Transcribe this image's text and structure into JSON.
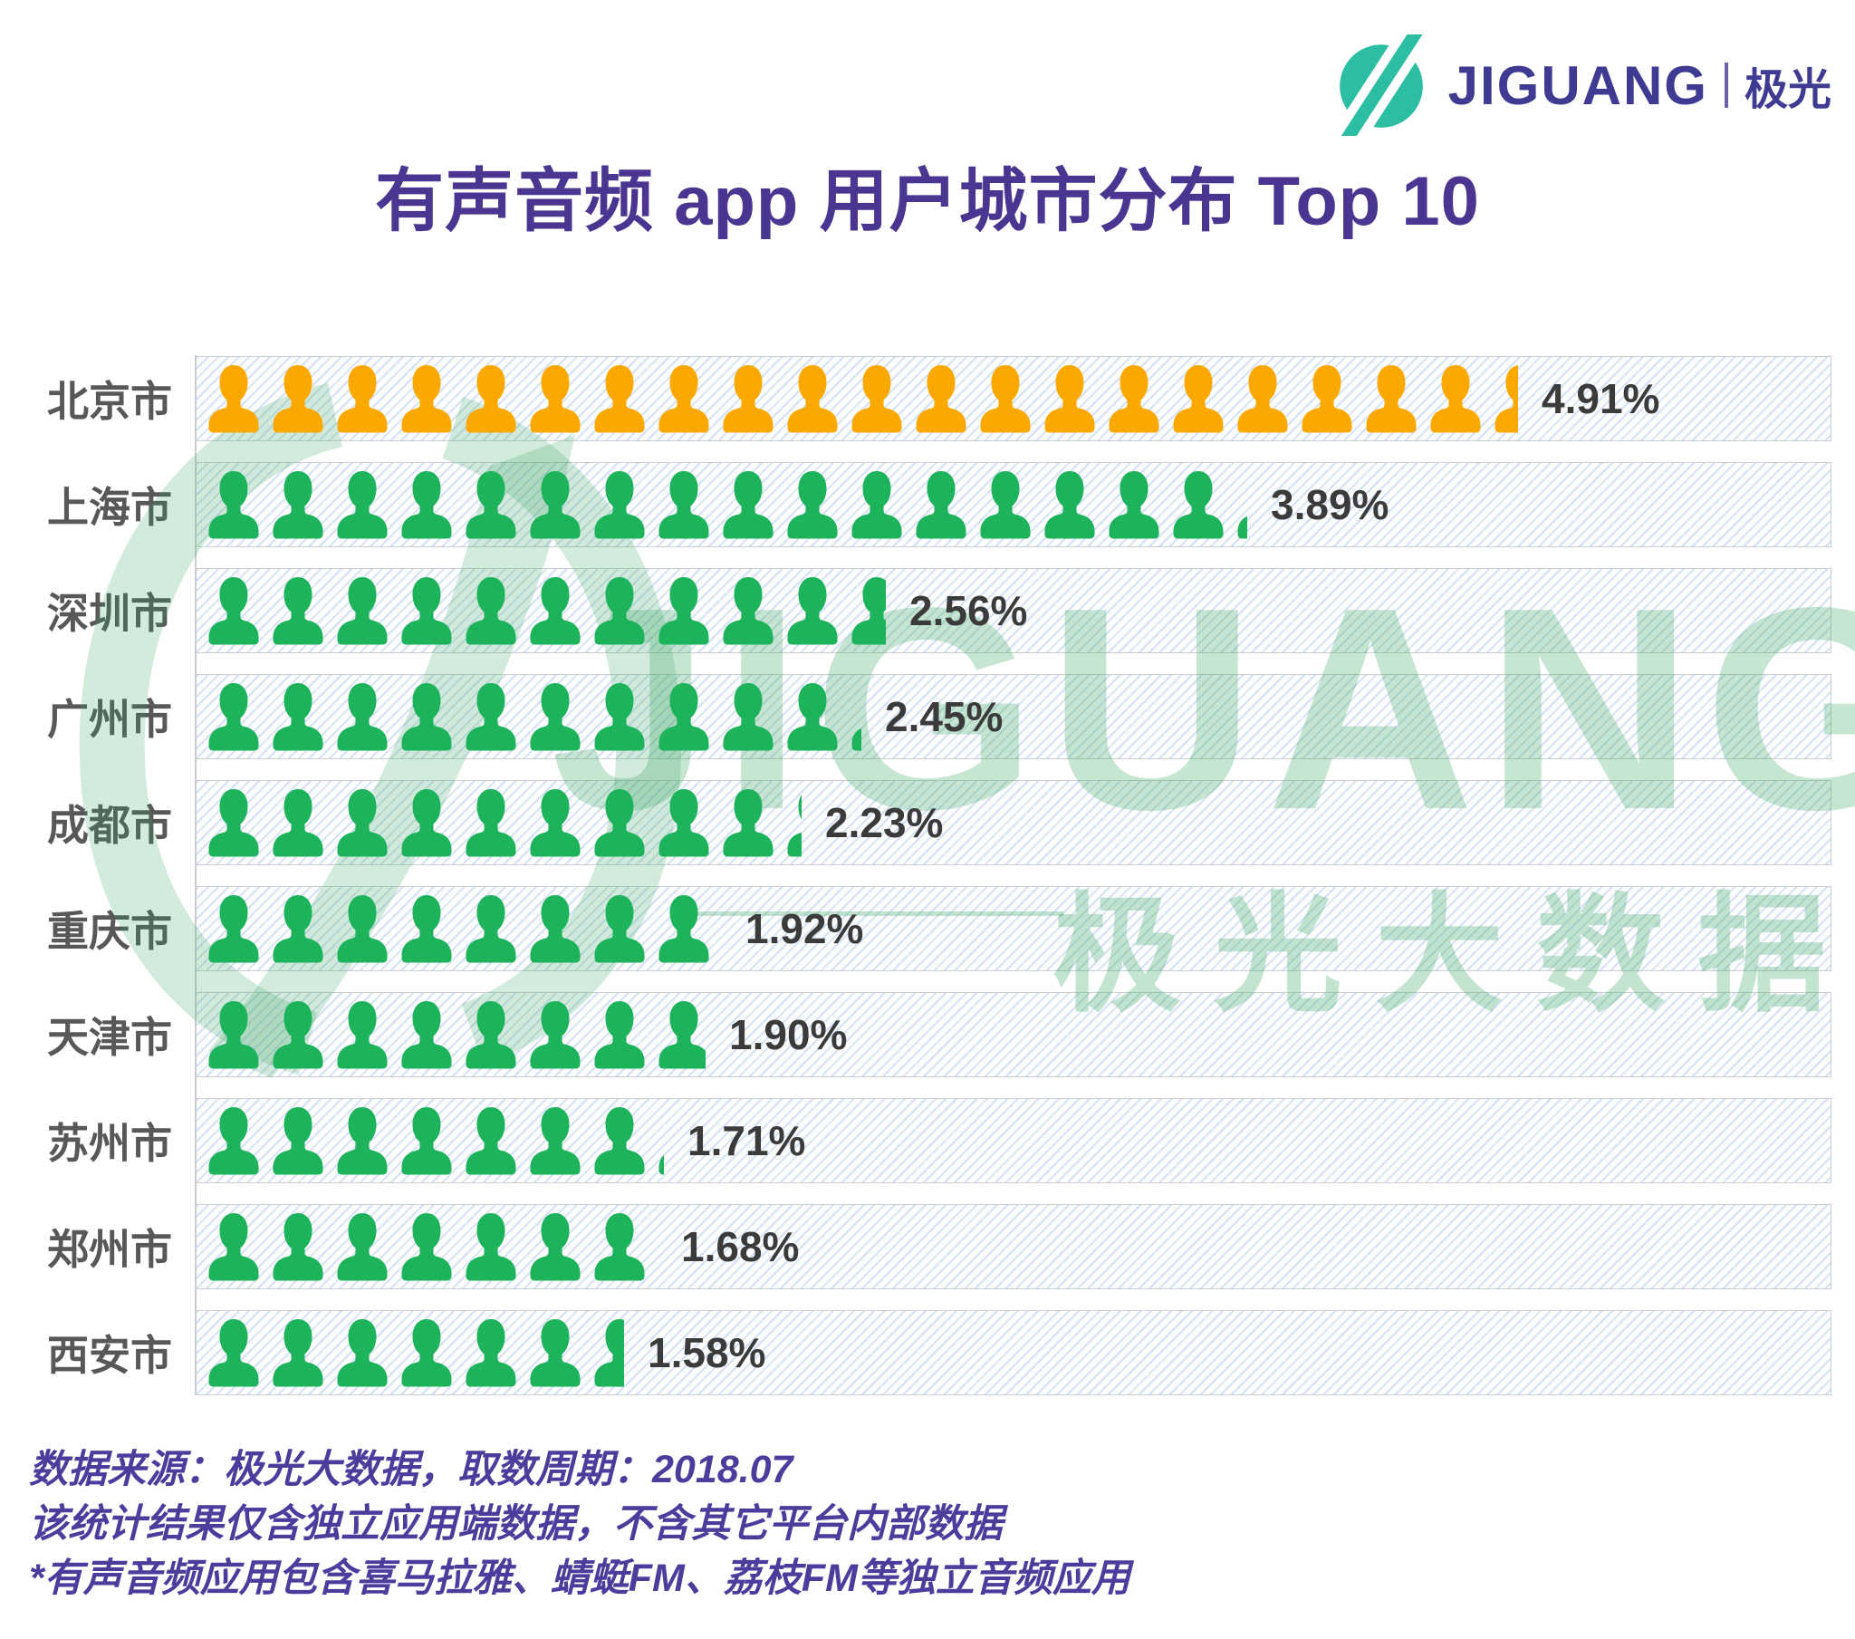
{
  "logo": {
    "brand": "JIGUANG",
    "brand_cn": "极光",
    "mark_color": "#2CBEA2",
    "text_color": "#3F3A92"
  },
  "title": {
    "text": "有声音频 app 用户城市分布 Top 10",
    "color": "#4A3591"
  },
  "chart_data": {
    "type": "bar",
    "style": "pictogram-bar",
    "title": "有声音频 app 用户城市分布 Top 10",
    "categories": [
      "北京市",
      "上海市",
      "深圳市",
      "广州市",
      "成都市",
      "重庆市",
      "天津市",
      "苏州市",
      "郑州市",
      "西安市"
    ],
    "values": [
      4.91,
      3.89,
      2.56,
      2.45,
      2.23,
      1.92,
      1.9,
      1.71,
      1.68,
      1.58
    ],
    "value_labels": [
      "4.91%",
      "3.89%",
      "2.56%",
      "2.45%",
      "2.23%",
      "1.92%",
      "1.90%",
      "1.71%",
      "1.68%",
      "1.58%"
    ],
    "bar_colors": [
      "#FBA900",
      "#1CB35B",
      "#1CB35B",
      "#1CB35B",
      "#1CB35B",
      "#1CB35B",
      "#1CB35B",
      "#1CB35B",
      "#1CB35B",
      "#1CB35B"
    ],
    "unit_icon": "person-icon",
    "percent_per_icon": 0.24,
    "xlabel": "",
    "ylabel": "",
    "xlim": [
      0,
      5.86
    ],
    "grid": false,
    "legend_position": "none"
  },
  "watermark": {
    "text_en": "JIGUANG",
    "text_cn": "极光大数据",
    "color": "rgba(55,166,95,0.30)"
  },
  "footer": {
    "lines": [
      "数据来源：极光大数据，取数周期：2018.07",
      "该统计结果仅含独立应用端数据，不含其它平台内部数据",
      "*有声音频应用包含喜马拉雅、蜻蜓FM、荔枝FM等独立音频应用"
    ]
  },
  "colors": {
    "band_border": "#CACDD2",
    "band_stripe": "rgba(125,170,220,0.32)",
    "axis_line": "#CCCCCC",
    "city_label": "#58585A",
    "value_label": "#3B3B3B"
  }
}
